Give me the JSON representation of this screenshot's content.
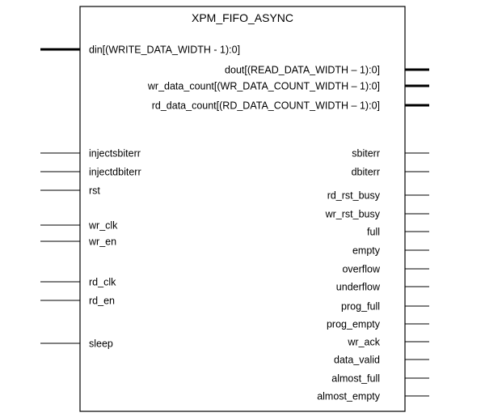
{
  "block": {
    "title": "XPM_FIFO_ASYNC"
  },
  "inputs": [
    {
      "label": "din[(WRITE_DATA_WIDTH - 1):0]",
      "bus": true
    },
    {
      "label": "injectsbiterr",
      "bus": false
    },
    {
      "label": "injectdbiterr",
      "bus": false
    },
    {
      "label": "rst",
      "bus": false
    },
    {
      "label": "wr_clk",
      "bus": false
    },
    {
      "label": "wr_en",
      "bus": false
    },
    {
      "label": "rd_clk",
      "bus": false
    },
    {
      "label": "rd_en",
      "bus": false
    },
    {
      "label": "sleep",
      "bus": false
    }
  ],
  "outputs": [
    {
      "label": "dout[(READ_DATA_WIDTH – 1):0]",
      "bus": true
    },
    {
      "label": "wr_data_count[(WR_DATA_COUNT_WIDTH – 1):0]",
      "bus": true
    },
    {
      "label": "rd_data_count[(RD_DATA_COUNT_WIDTH – 1):0]",
      "bus": true
    },
    {
      "label": "sbiterr",
      "bus": false
    },
    {
      "label": "dbiterr",
      "bus": false
    },
    {
      "label": "rd_rst_busy",
      "bus": false
    },
    {
      "label": "wr_rst_busy",
      "bus": false
    },
    {
      "label": "full",
      "bus": false
    },
    {
      "label": "empty",
      "bus": false
    },
    {
      "label": "overflow",
      "bus": false
    },
    {
      "label": "underflow",
      "bus": false
    },
    {
      "label": "prog_full",
      "bus": false
    },
    {
      "label": "prog_empty",
      "bus": false
    },
    {
      "label": "wr_ack",
      "bus": false
    },
    {
      "label": "data_valid",
      "bus": false
    },
    {
      "label": "almost_full",
      "bus": false
    },
    {
      "label": "almost_empty",
      "bus": false
    }
  ]
}
